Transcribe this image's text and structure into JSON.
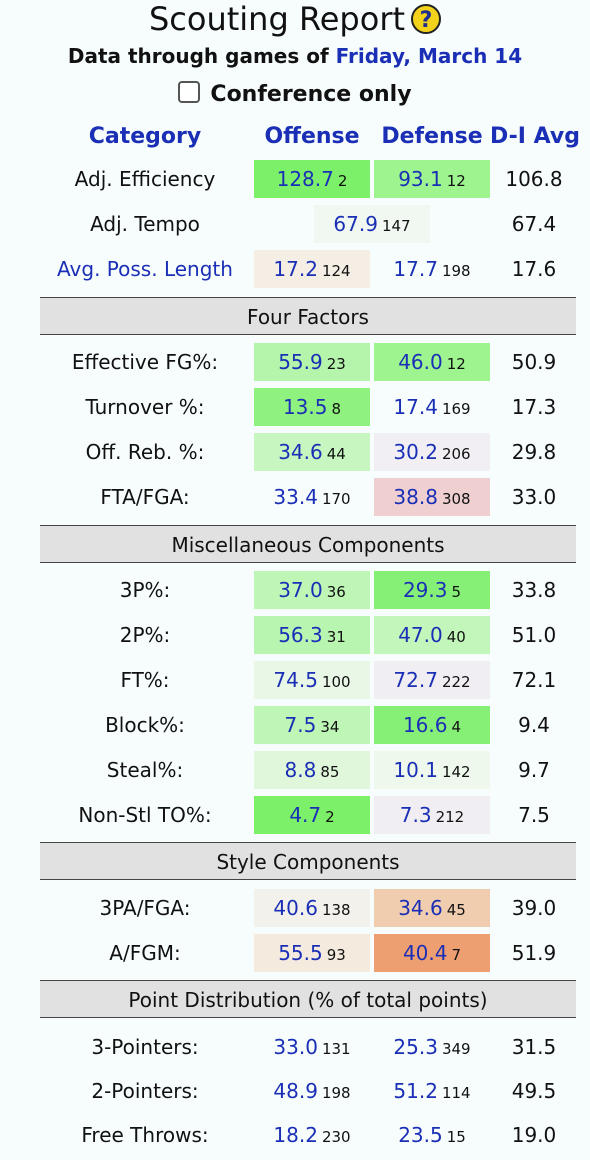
{
  "header": {
    "title": "Scouting Report",
    "help_glyph": "?",
    "subtitle_prefix": "Data through games of",
    "subtitle_date": "Friday, March 14",
    "conference_label": "Conference only"
  },
  "columns": {
    "category": "Category",
    "offense": "Offense",
    "defense": "Defense",
    "d1avg": "D-I Avg"
  },
  "sections": {
    "four_factors": "Four Factors",
    "misc": "Miscellaneous Components",
    "style": "Style Components",
    "point_dist": "Point Distribution (% of total points)"
  },
  "rows": {
    "adj_eff": {
      "label": "Adj. Efficiency",
      "off": "128.7",
      "off_rank": "2",
      "def": "93.1",
      "def_rank": "12",
      "avg": "106.8",
      "off_bg": "#7df06a",
      "def_bg": "#9ef58f"
    },
    "adj_tempo": {
      "label": "Adj. Tempo",
      "val": "67.9",
      "rank": "147",
      "avg": "67.4",
      "bg": "#f1f7f1"
    },
    "poss_len": {
      "label": "Avg. Poss. Length",
      "off": "17.2",
      "off_rank": "124",
      "def": "17.7",
      "def_rank": "198",
      "avg": "17.6",
      "off_bg": "#f5eee4",
      "def_bg": "transparent"
    },
    "efg": {
      "label": "Effective FG%:",
      "off": "55.9",
      "off_rank": "23",
      "def": "46.0",
      "def_rank": "12",
      "avg": "50.9",
      "off_bg": "#b4f5ab",
      "def_bg": "#9ef58f"
    },
    "tov": {
      "label": "Turnover %:",
      "off": "13.5",
      "off_rank": "8",
      "def": "17.4",
      "def_rank": "169",
      "avg": "17.3",
      "off_bg": "#8ff27e",
      "def_bg": "transparent"
    },
    "orb": {
      "label": "Off. Reb. %:",
      "off": "34.6",
      "off_rank": "44",
      "def": "30.2",
      "def_rank": "206",
      "avg": "29.8",
      "off_bg": "#c7f6c0",
      "def_bg": "#f1eff3"
    },
    "ftr": {
      "label": "FTA/FGA:",
      "off": "33.4",
      "off_rank": "170",
      "def": "38.8",
      "def_rank": "308",
      "avg": "33.0",
      "off_bg": "transparent",
      "def_bg": "#efcfd0"
    },
    "p3": {
      "label": "3P%:",
      "off": "37.0",
      "off_rank": "36",
      "def": "29.3",
      "def_rank": "5",
      "avg": "33.8",
      "off_bg": "#bdf6b5",
      "def_bg": "#86f076"
    },
    "p2": {
      "label": "2P%:",
      "off": "56.3",
      "off_rank": "31",
      "def": "47.0",
      "def_rank": "40",
      "avg": "51.0",
      "off_bg": "#b8f5b0",
      "def_bg": "#c2f6ba"
    },
    "ft": {
      "label": "FT%:",
      "off": "74.5",
      "off_rank": "100",
      "def": "72.7",
      "def_rank": "222",
      "avg": "72.1",
      "off_bg": "#e8f7e6",
      "def_bg": "#f0eef3"
    },
    "blk": {
      "label": "Block%:",
      "off": "7.5",
      "off_rank": "34",
      "def": "16.6",
      "def_rank": "4",
      "avg": "9.4",
      "off_bg": "#bdf6b5",
      "def_bg": "#86f076"
    },
    "stl": {
      "label": "Steal%:",
      "off": "8.8",
      "off_rank": "85",
      "def": "10.1",
      "def_rank": "142",
      "avg": "9.7",
      "off_bg": "#e0f7dc",
      "def_bg": "#eef8ed"
    },
    "nstov": {
      "label": "Non-Stl TO%:",
      "off": "4.7",
      "off_rank": "2",
      "def": "7.3",
      "def_rank": "212",
      "avg": "7.5",
      "off_bg": "#7df06a",
      "def_bg": "#f0eef3"
    },
    "tpa": {
      "label": "3PA/FGA:",
      "off": "40.6",
      "off_rank": "138",
      "def": "34.6",
      "def_rank": "45",
      "avg": "39.0",
      "off_bg": "#f3f1ec",
      "def_bg": "#f1cdb0"
    },
    "afgm": {
      "label": "A/FGM:",
      "off": "55.5",
      "off_rank": "93",
      "def": "40.4",
      "def_rank": "7",
      "avg": "51.9",
      "off_bg": "#f4ebde",
      "def_bg": "#ee9f72"
    },
    "pts3": {
      "label": "3-Pointers:",
      "off": "33.0",
      "off_rank": "131",
      "def": "25.3",
      "def_rank": "349",
      "avg": "31.5"
    },
    "pts2": {
      "label": "2-Pointers:",
      "off": "48.9",
      "off_rank": "198",
      "def": "51.2",
      "def_rank": "114",
      "avg": "49.5"
    },
    "ptsft": {
      "label": "Free Throws:",
      "off": "18.2",
      "off_rank": "230",
      "def": "23.5",
      "def_rank": "15",
      "avg": "19.0"
    }
  }
}
